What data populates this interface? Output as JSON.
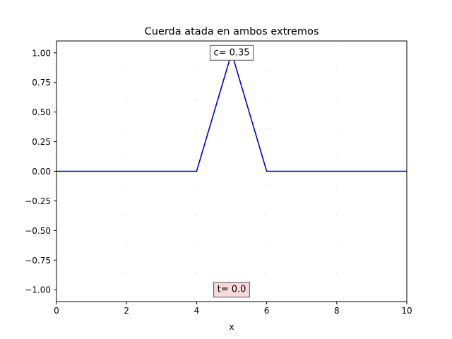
{
  "chart_data": {
    "type": "line",
    "title": "Cuerda atada en ambos extremos",
    "xlabel": "x",
    "ylabel": "",
    "xlim": [
      0,
      10
    ],
    "ylim": [
      -1.1,
      1.1
    ],
    "x_ticks": [
      0,
      2,
      4,
      6,
      8,
      10
    ],
    "x_tick_labels": [
      "0",
      "2",
      "4",
      "6",
      "8",
      "10"
    ],
    "y_ticks": [
      -1.0,
      -0.75,
      -0.5,
      -0.25,
      0.0,
      0.25,
      0.5,
      0.75,
      1.0
    ],
    "y_tick_labels": [
      "−1.00",
      "−0.75",
      "−0.50",
      "−0.25",
      "0.00",
      "0.25",
      "0.50",
      "0.75",
      "1.00"
    ],
    "grid": "dotted",
    "series": [
      {
        "color": "#0000cc",
        "x": [
          0,
          4,
          5,
          6,
          10
        ],
        "y": [
          0,
          0,
          1,
          0,
          0
        ]
      }
    ],
    "annotations": [
      {
        "text": "c= 0.35",
        "x": 5.0,
        "y": 1.0,
        "facecolor": "#ffffff",
        "edgecolor": "#555555"
      },
      {
        "text": "t= 0.0",
        "x": 5.0,
        "y": -1.0,
        "facecolor": "#f8d8dc",
        "edgecolor": "#555555"
      }
    ]
  }
}
